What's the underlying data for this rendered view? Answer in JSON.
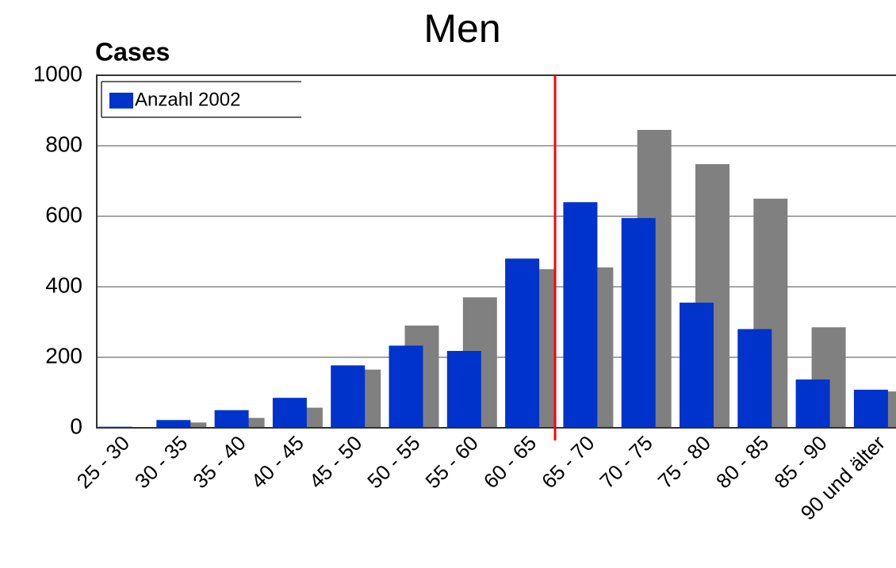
{
  "chart_data": {
    "type": "bar",
    "title": "Men",
    "y_label": "Cases",
    "categories": [
      "25 - 30",
      "30 - 35",
      "35 - 40",
      "40 - 45",
      "45 - 50",
      "50 - 55",
      "55 - 60",
      "60 - 65",
      "65 - 70",
      "70 - 75",
      "75 - 80",
      "80 - 85",
      "85 - 90",
      "90 und älter"
    ],
    "series": [
      {
        "name": "Anzahl 2002",
        "color": "#0033cc",
        "values": [
          3,
          22,
          50,
          85,
          177,
          233,
          218,
          480,
          640,
          595,
          355,
          280,
          137,
          108
        ]
      },
      {
        "color": "#808080",
        "values": [
          2,
          15,
          28,
          57,
          165,
          290,
          370,
          450,
          455,
          845,
          748,
          650,
          285,
          103
        ]
      }
    ],
    "ylim": [
      0,
      1000
    ],
    "yticks": [
      0,
      200,
      400,
      600,
      800,
      1000
    ],
    "grid": true,
    "legend": "upper left"
  }
}
